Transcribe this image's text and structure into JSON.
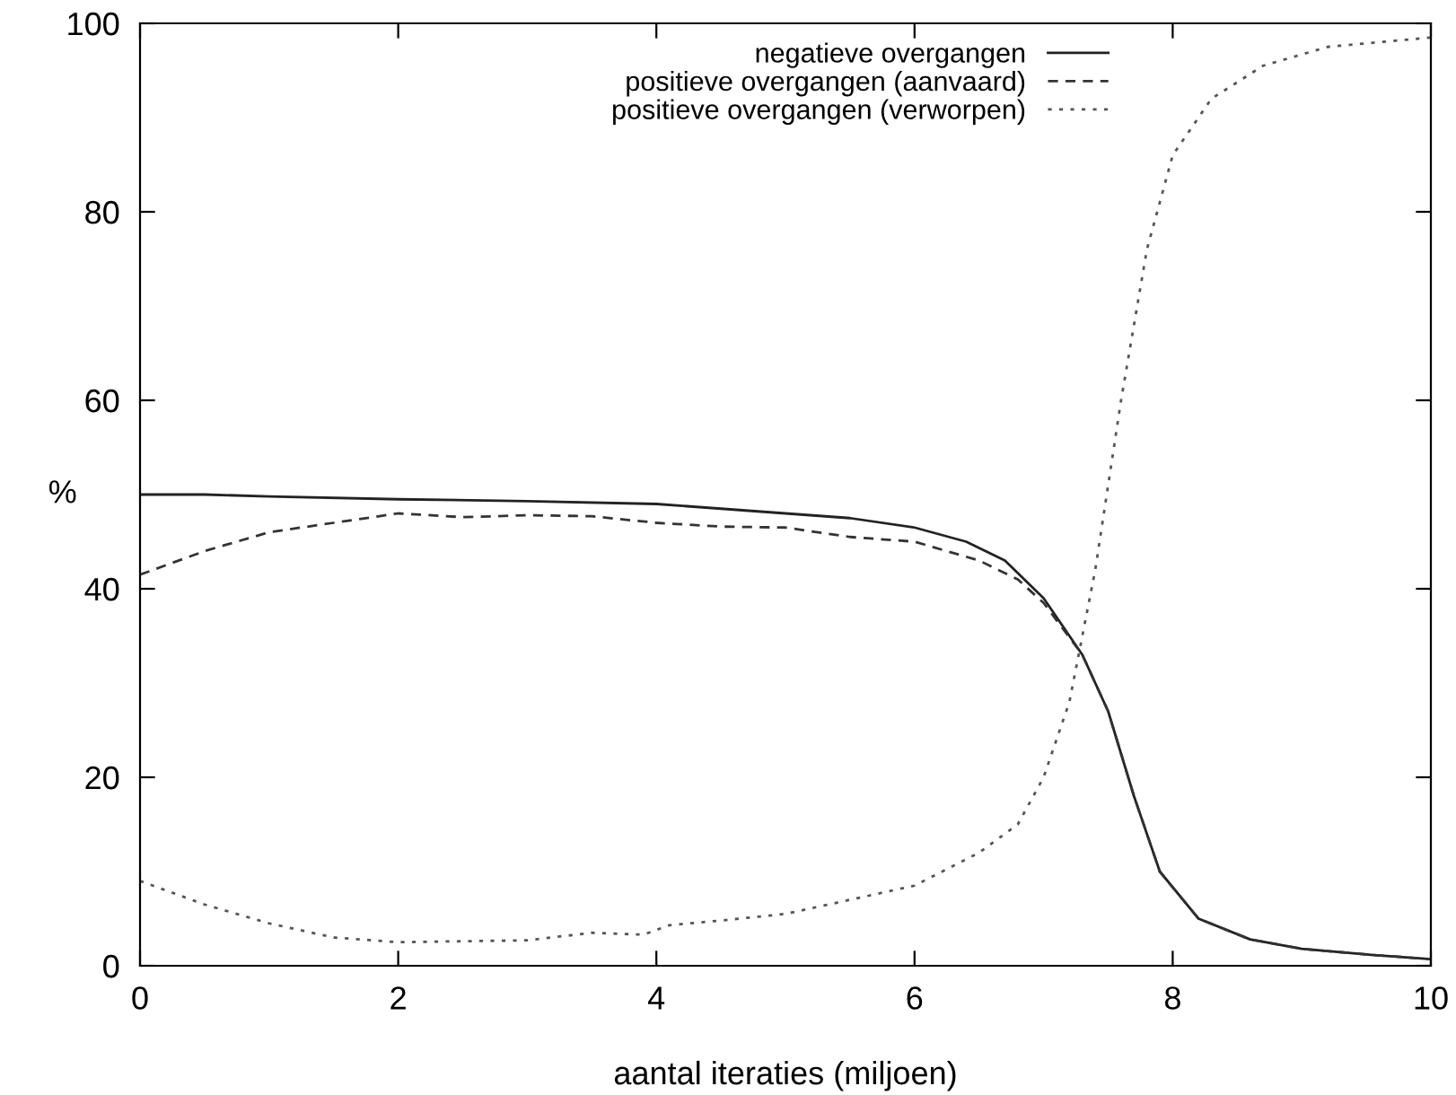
{
  "chart_data": {
    "type": "line",
    "xlabel": "aantal iteraties (miljoen)",
    "ylabel": "%",
    "xlim": [
      0,
      10
    ],
    "ylim": [
      0,
      100
    ],
    "xticks": [
      0,
      2,
      4,
      6,
      8,
      10
    ],
    "yticks": [
      0,
      20,
      40,
      60,
      80,
      100
    ],
    "grid": false,
    "legend": "top right",
    "marker": "none",
    "series": [
      {
        "name": "negatieve overgangen",
        "color": "#222222",
        "line_style": "solid",
        "x": [
          0,
          0.5,
          1,
          2,
          3,
          4,
          5,
          5.5,
          6,
          6.4,
          6.7,
          7,
          7.3,
          7.5,
          7.7,
          7.9,
          8.2,
          8.6,
          9,
          9.5,
          10
        ],
        "values": [
          50,
          50,
          49.8,
          49.5,
          49.3,
          49,
          48,
          47.5,
          46.5,
          45,
          43,
          39,
          33,
          27,
          18,
          10,
          5,
          2.8,
          1.8,
          1.2,
          0.7
        ]
      },
      {
        "name": "positieve overgangen (aanvaard)",
        "color": "#333333",
        "line_style": "dashed",
        "x": [
          0,
          0.5,
          1,
          1.5,
          2,
          2.5,
          3,
          3.5,
          4,
          4.5,
          5,
          5.5,
          6,
          6.5,
          6.8,
          7,
          7.3,
          7.5,
          7.7,
          7.9,
          8.2,
          8.6,
          9,
          9.5,
          10
        ],
        "values": [
          41.5,
          44,
          46,
          47,
          48,
          47.6,
          47.8,
          47.7,
          47,
          46.6,
          46.5,
          45.5,
          45,
          43,
          41,
          38.5,
          33,
          27,
          18,
          10,
          5,
          2.8,
          1.8,
          1.2,
          0.7
        ]
      },
      {
        "name": "positieve overgangen (verworpen)",
        "color": "#555555",
        "line_style": "dotted",
        "x": [
          0,
          0.5,
          1,
          1.5,
          2,
          2.5,
          3,
          3.5,
          3.9,
          4.1,
          4.5,
          5,
          5.5,
          6,
          6.5,
          6.8,
          7,
          7.2,
          7.4,
          7.6,
          7.8,
          8,
          8.3,
          8.7,
          9.2,
          10
        ],
        "values": [
          9,
          6.5,
          4.5,
          3,
          2.5,
          2.6,
          2.7,
          3.5,
          3.3,
          4.3,
          4.8,
          5.5,
          7,
          8.5,
          12,
          15,
          20,
          28,
          42,
          60,
          76,
          86,
          92,
          95.5,
          97.5,
          98.5
        ]
      }
    ]
  }
}
